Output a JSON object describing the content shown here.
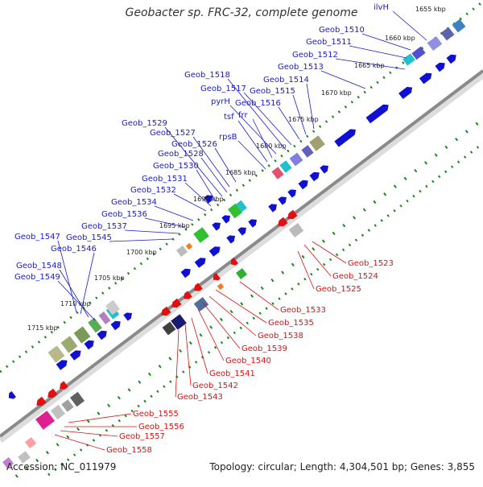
{
  "title": "Geobacter sp. FRC-32, complete genome",
  "footer": {
    "accession": "Accession: NC_011979",
    "summary": "Topology: circular; Length: 4,304,501 bp; Genes: 3,855"
  },
  "colors": {
    "forward_label": "#1a1acc",
    "reverse_label": "#dd1111",
    "ring": "#9a9a9a",
    "tick_green": "#1a8a1a"
  },
  "kbp_ticks": [
    "1655 kbp",
    "1660 kbp",
    "1665 kbp",
    "1670 kbp",
    "1675 kbp",
    "1680 kbp",
    "1685 kbp",
    "1690 kbp",
    "1695 kbp",
    "1700 kbp",
    "1705 kbp",
    "1710 kbp",
    "1715 kbp"
  ],
  "forward_labels": [
    "ilvH",
    "Geob_1510",
    "Geob_1511",
    "Geob_1512",
    "Geob_1513",
    "Geob_1514",
    "Geob_1515",
    "Geob_1516",
    "Geob_1517",
    "Geob_1518",
    "pyrH",
    "frr",
    "tsf",
    "rpsB",
    "Geob_1526",
    "Geob_1527",
    "Geob_1528",
    "Geob_1529",
    "Geob_1530",
    "Geob_1531",
    "Geob_1532",
    "Geob_1534",
    "Geob_1536",
    "Geob_1537",
    "Geob_1545",
    "Geob_1546",
    "Geob_1547",
    "Geob_1548",
    "Geob_1549"
  ],
  "reverse_labels": [
    "Geob_1523",
    "Geob_1524",
    "Geob_1525",
    "Geob_1533",
    "Geob_1535",
    "Geob_1538",
    "Geob_1539",
    "Geob_1540",
    "Geob_1541",
    "Geob_1542",
    "Geob_1543",
    "Geob_1555",
    "Geob_1556",
    "Geob_1557",
    "Geob_1558"
  ]
}
